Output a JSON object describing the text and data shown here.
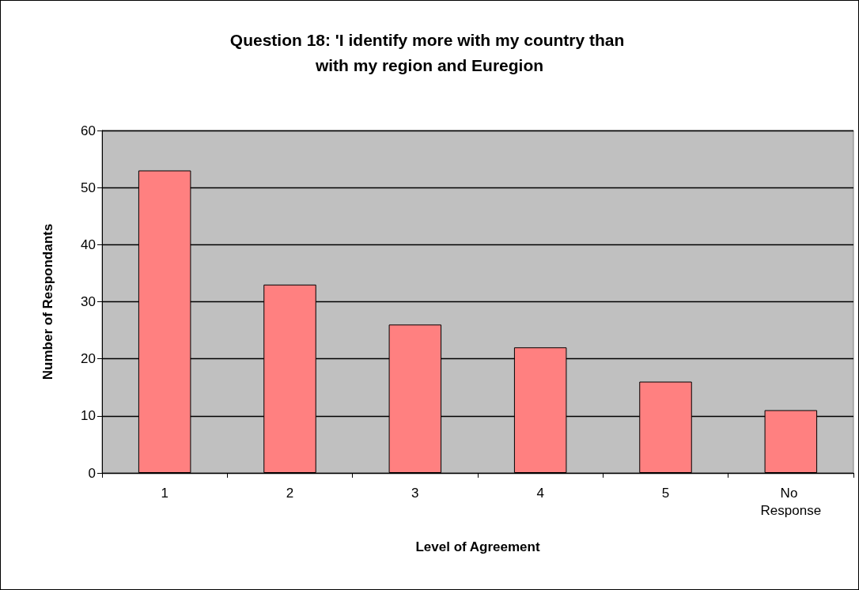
{
  "chart_data": {
    "type": "bar",
    "title": "Question 18: 'I identify more with my country than with my region and Euregion",
    "xlabel": "Level of Agreement",
    "ylabel": "Number of Respondants",
    "categories": [
      "1",
      "2",
      "3",
      "4",
      "5",
      "No Response"
    ],
    "values": [
      53,
      33,
      26,
      22,
      16,
      11
    ],
    "color": "#ff8080",
    "ylim": [
      0,
      60
    ],
    "yticks": [
      0,
      10,
      20,
      30,
      40,
      50,
      60
    ],
    "grid": "y"
  }
}
